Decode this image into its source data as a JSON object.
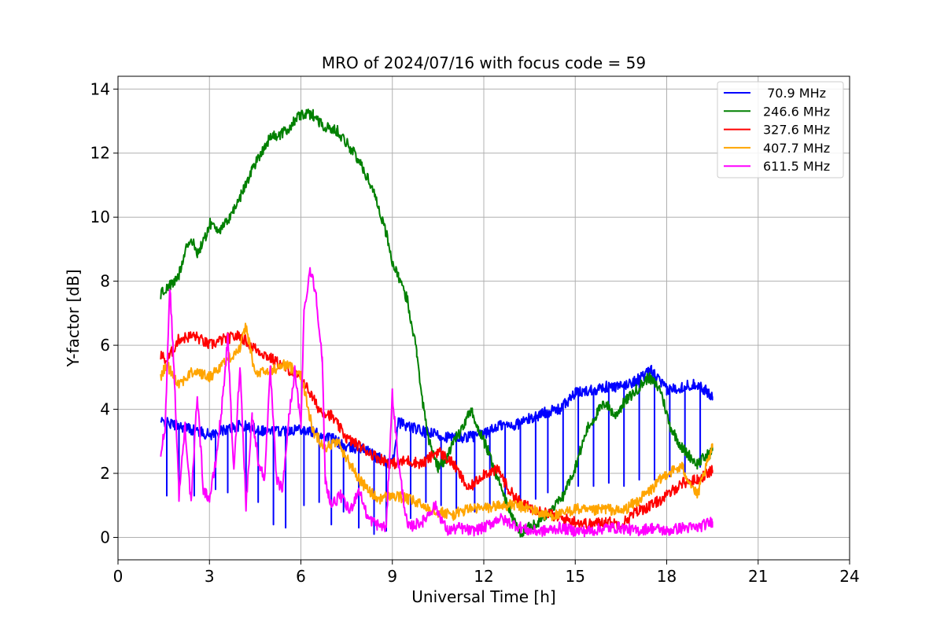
{
  "chart_data": {
    "type": "line",
    "title": "MRO of 2024/07/16 with focus code = 59",
    "xlabel": "Universal Time [h]",
    "ylabel": "Y-factor [dB]",
    "xlim": [
      0,
      24
    ],
    "ylim": [
      -0.7,
      14.4
    ],
    "xticks": [
      0,
      3,
      6,
      9,
      12,
      15,
      18,
      21,
      24
    ],
    "yticks": [
      0,
      2,
      4,
      6,
      8,
      10,
      12,
      14
    ],
    "grid": true,
    "legend_position": "top-right",
    "series": [
      {
        "name": " 70.9 MHz",
        "color": "#0000ff",
        "points": [
          [
            1.4,
            3.6
          ],
          [
            2,
            3.5
          ],
          [
            3,
            3.2
          ],
          [
            4,
            3.5
          ],
          [
            5,
            3.3
          ],
          [
            6,
            3.4
          ],
          [
            7,
            3.1
          ],
          [
            7.5,
            2.8
          ],
          [
            8,
            2.8
          ],
          [
            8.5,
            2.5
          ],
          [
            9,
            2.3
          ],
          [
            9.2,
            3.6
          ],
          [
            10,
            3.3
          ],
          [
            11,
            3.1
          ],
          [
            12,
            3.2
          ],
          [
            12.5,
            3.5
          ],
          [
            13,
            3.5
          ],
          [
            14,
            3.9
          ],
          [
            14.5,
            4.0
          ],
          [
            15,
            4.5
          ],
          [
            15.5,
            4.6
          ],
          [
            16,
            4.7
          ],
          [
            16.5,
            4.7
          ],
          [
            17,
            4.9
          ],
          [
            17.5,
            5.2
          ],
          [
            18,
            4.6
          ],
          [
            18.5,
            4.7
          ],
          [
            19,
            4.8
          ],
          [
            19.5,
            4.4
          ]
        ],
        "dips": [
          [
            1.6,
            1.3
          ],
          [
            2,
            1.2
          ],
          [
            2.5,
            1.3
          ],
          [
            3.2,
            1.5
          ],
          [
            3.6,
            1.4
          ],
          [
            4.2,
            1.2
          ],
          [
            4.6,
            1.1
          ],
          [
            5.1,
            0.4
          ],
          [
            5.5,
            0.3
          ],
          [
            6.1,
            1.0
          ],
          [
            6.6,
            1.1
          ],
          [
            7,
            0.4
          ],
          [
            7.4,
            0.8
          ],
          [
            7.9,
            0.3
          ],
          [
            8.4,
            0.1
          ],
          [
            8.8,
            0.2
          ],
          [
            9.6,
            0.6
          ],
          [
            10.1,
            1.1
          ],
          [
            10.6,
            1.0
          ],
          [
            11.1,
            0.9
          ],
          [
            11.7,
            0.8
          ],
          [
            12.2,
            1.0
          ],
          [
            12.7,
            1.1
          ],
          [
            13.2,
            1.1
          ],
          [
            13.7,
            1.2
          ],
          [
            14.1,
            1.4
          ],
          [
            14.6,
            1.3
          ],
          [
            15.1,
            1.6
          ],
          [
            15.6,
            1.6
          ],
          [
            16.1,
            1.7
          ],
          [
            16.6,
            1.6
          ],
          [
            17.1,
            1.8
          ],
          [
            17.6,
            1.8
          ],
          [
            18.1,
            1.9
          ],
          [
            18.6,
            2.0
          ],
          [
            19.1,
            2.2
          ]
        ]
      },
      {
        "name": "246.6 MHz",
        "color": "#008000",
        "points": [
          [
            1.4,
            7.6
          ],
          [
            1.6,
            7.8
          ],
          [
            1.8,
            7.9
          ],
          [
            2,
            8.2
          ],
          [
            2.2,
            9.0
          ],
          [
            2.4,
            9.3
          ],
          [
            2.6,
            8.9
          ],
          [
            2.8,
            9.2
          ],
          [
            3,
            9.8
          ],
          [
            3.4,
            9.6
          ],
          [
            3.6,
            9.9
          ],
          [
            4,
            10.6
          ],
          [
            4.4,
            11.5
          ],
          [
            4.8,
            12.2
          ],
          [
            5,
            12.5
          ],
          [
            5.4,
            12.6
          ],
          [
            5.8,
            13.0
          ],
          [
            6,
            13.2
          ],
          [
            6.4,
            13.2
          ],
          [
            6.8,
            12.8
          ],
          [
            7.2,
            12.7
          ],
          [
            7.6,
            12.2
          ],
          [
            8,
            11.6
          ],
          [
            8.4,
            10.8
          ],
          [
            8.8,
            9.5
          ],
          [
            9,
            8.6
          ],
          [
            9.2,
            8.1
          ],
          [
            9.5,
            7.4
          ],
          [
            9.8,
            5.8
          ],
          [
            10,
            4.2
          ],
          [
            10.2,
            3.0
          ],
          [
            10.5,
            2.2
          ],
          [
            10.8,
            2.5
          ],
          [
            11,
            3.0
          ],
          [
            11.3,
            3.4
          ],
          [
            11.6,
            4.0
          ],
          [
            11.8,
            3.4
          ],
          [
            12.1,
            2.8
          ],
          [
            12.4,
            2.0
          ],
          [
            12.7,
            1.2
          ],
          [
            13,
            0.5
          ],
          [
            13.2,
            0.1
          ],
          [
            13.4,
            0.3
          ],
          [
            13.8,
            0.5
          ],
          [
            14.2,
            0.8
          ],
          [
            14.6,
            1.3
          ],
          [
            15,
            2.2
          ],
          [
            15.4,
            3.4
          ],
          [
            15.8,
            4.0
          ],
          [
            16,
            4.2
          ],
          [
            16.3,
            3.8
          ],
          [
            16.6,
            4.2
          ],
          [
            17,
            4.6
          ],
          [
            17.4,
            5.0
          ],
          [
            17.8,
            4.6
          ],
          [
            18.1,
            3.5
          ],
          [
            18.5,
            2.8
          ],
          [
            19,
            2.3
          ],
          [
            19.5,
            2.7
          ]
        ]
      },
      {
        "name": "327.6 MHz",
        "color": "#ff0000",
        "points": [
          [
            1.4,
            5.7
          ],
          [
            1.6,
            5.5
          ],
          [
            2,
            6.2
          ],
          [
            2.5,
            6.3
          ],
          [
            3,
            6.0
          ],
          [
            3.5,
            6.2
          ],
          [
            4,
            6.3
          ],
          [
            4.5,
            5.9
          ],
          [
            5,
            5.6
          ],
          [
            5.5,
            5.3
          ],
          [
            6,
            5.0
          ],
          [
            6.3,
            4.5
          ],
          [
            6.6,
            4.0
          ],
          [
            7,
            3.8
          ],
          [
            7.5,
            3.1
          ],
          [
            8,
            2.8
          ],
          [
            8.5,
            2.5
          ],
          [
            9,
            2.3
          ],
          [
            9.5,
            2.4
          ],
          [
            10,
            2.3
          ],
          [
            10.5,
            2.7
          ],
          [
            11,
            2.3
          ],
          [
            11.5,
            1.5
          ],
          [
            12,
            2.0
          ],
          [
            12.5,
            2.1
          ],
          [
            12.8,
            1.5
          ],
          [
            13.3,
            1.0
          ],
          [
            14,
            0.8
          ],
          [
            14.5,
            0.6
          ],
          [
            15,
            0.5
          ],
          [
            15.5,
            0.4
          ],
          [
            16,
            0.5
          ],
          [
            16.5,
            0.4
          ],
          [
            17,
            0.8
          ],
          [
            17.5,
            1.0
          ],
          [
            18,
            1.3
          ],
          [
            18.5,
            1.7
          ],
          [
            19,
            1.8
          ],
          [
            19.5,
            2.1
          ]
        ]
      },
      {
        "name": "407.7 MHz",
        "color": "#ffa500",
        "points": [
          [
            1.4,
            5.0
          ],
          [
            1.6,
            5.4
          ],
          [
            2,
            4.8
          ],
          [
            2.5,
            5.2
          ],
          [
            3,
            5.0
          ],
          [
            3.5,
            5.5
          ],
          [
            4,
            5.9
          ],
          [
            4.2,
            6.6
          ],
          [
            4.5,
            5.1
          ],
          [
            5,
            5.2
          ],
          [
            5.5,
            5.4
          ],
          [
            6,
            5.1
          ],
          [
            6.4,
            3.3
          ],
          [
            6.8,
            2.8
          ],
          [
            7.2,
            3.0
          ],
          [
            7.6,
            2.3
          ],
          [
            8,
            1.7
          ],
          [
            8.5,
            1.2
          ],
          [
            9,
            1.3
          ],
          [
            9.5,
            1.2
          ],
          [
            10,
            1.0
          ],
          [
            10.5,
            0.8
          ],
          [
            11,
            0.7
          ],
          [
            11.5,
            0.9
          ],
          [
            12,
            0.9
          ],
          [
            12.5,
            1.0
          ],
          [
            13,
            1.0
          ],
          [
            13.5,
            0.9
          ],
          [
            14,
            0.7
          ],
          [
            14.5,
            0.7
          ],
          [
            15,
            0.9
          ],
          [
            15.5,
            0.8
          ],
          [
            16,
            0.9
          ],
          [
            16.5,
            0.8
          ],
          [
            17,
            1.1
          ],
          [
            17.5,
            1.5
          ],
          [
            18,
            2.0
          ],
          [
            18.5,
            2.2
          ],
          [
            19,
            1.3
          ],
          [
            19.5,
            2.8
          ]
        ]
      },
      {
        "name": "611.5 MHz",
        "color": "#ff00ff",
        "points": [
          [
            1.4,
            2.6
          ],
          [
            1.55,
            3.5
          ],
          [
            1.7,
            7.9
          ],
          [
            1.85,
            5.0
          ],
          [
            2,
            1.3
          ],
          [
            2.2,
            3.5
          ],
          [
            2.4,
            1.0
          ],
          [
            2.6,
            4.5
          ],
          [
            2.8,
            1.5
          ],
          [
            3,
            1.2
          ],
          [
            3.2,
            2.3
          ],
          [
            3.4,
            4.0
          ],
          [
            3.6,
            6.2
          ],
          [
            3.8,
            2.0
          ],
          [
            4,
            5.4
          ],
          [
            4.2,
            1.0
          ],
          [
            4.4,
            3.8
          ],
          [
            4.6,
            2.4
          ],
          [
            4.8,
            1.8
          ],
          [
            5,
            5.2
          ],
          [
            5.2,
            1.8
          ],
          [
            5.4,
            1.5
          ],
          [
            5.6,
            3.7
          ],
          [
            5.8,
            5.2
          ],
          [
            6,
            3.5
          ],
          [
            6.1,
            7.0
          ],
          [
            6.3,
            8.4
          ],
          [
            6.5,
            7.6
          ],
          [
            6.7,
            5.5
          ],
          [
            6.8,
            1.8
          ],
          [
            7,
            1.0
          ],
          [
            7.3,
            1.3
          ],
          [
            7.6,
            0.8
          ],
          [
            7.9,
            1.5
          ],
          [
            8.2,
            0.6
          ],
          [
            8.5,
            0.4
          ],
          [
            8.8,
            0.3
          ],
          [
            9,
            4.5
          ],
          [
            9.2,
            2.3
          ],
          [
            9.5,
            0.3
          ],
          [
            10,
            0.5
          ],
          [
            10.4,
            1.0
          ],
          [
            10.8,
            0.2
          ],
          [
            11.2,
            0.3
          ],
          [
            11.6,
            0.2
          ],
          [
            12,
            0.3
          ],
          [
            12.5,
            0.6
          ],
          [
            13,
            0.4
          ],
          [
            13.5,
            0.2
          ],
          [
            14,
            0.2
          ],
          [
            14.5,
            0.3
          ],
          [
            15,
            0.2
          ],
          [
            15.5,
            0.2
          ],
          [
            16,
            0.3
          ],
          [
            16.5,
            0.3
          ],
          [
            17,
            0.2
          ],
          [
            17.5,
            0.3
          ],
          [
            18,
            0.2
          ],
          [
            18.5,
            0.3
          ],
          [
            19,
            0.3
          ],
          [
            19.5,
            0.5
          ]
        ]
      }
    ]
  }
}
